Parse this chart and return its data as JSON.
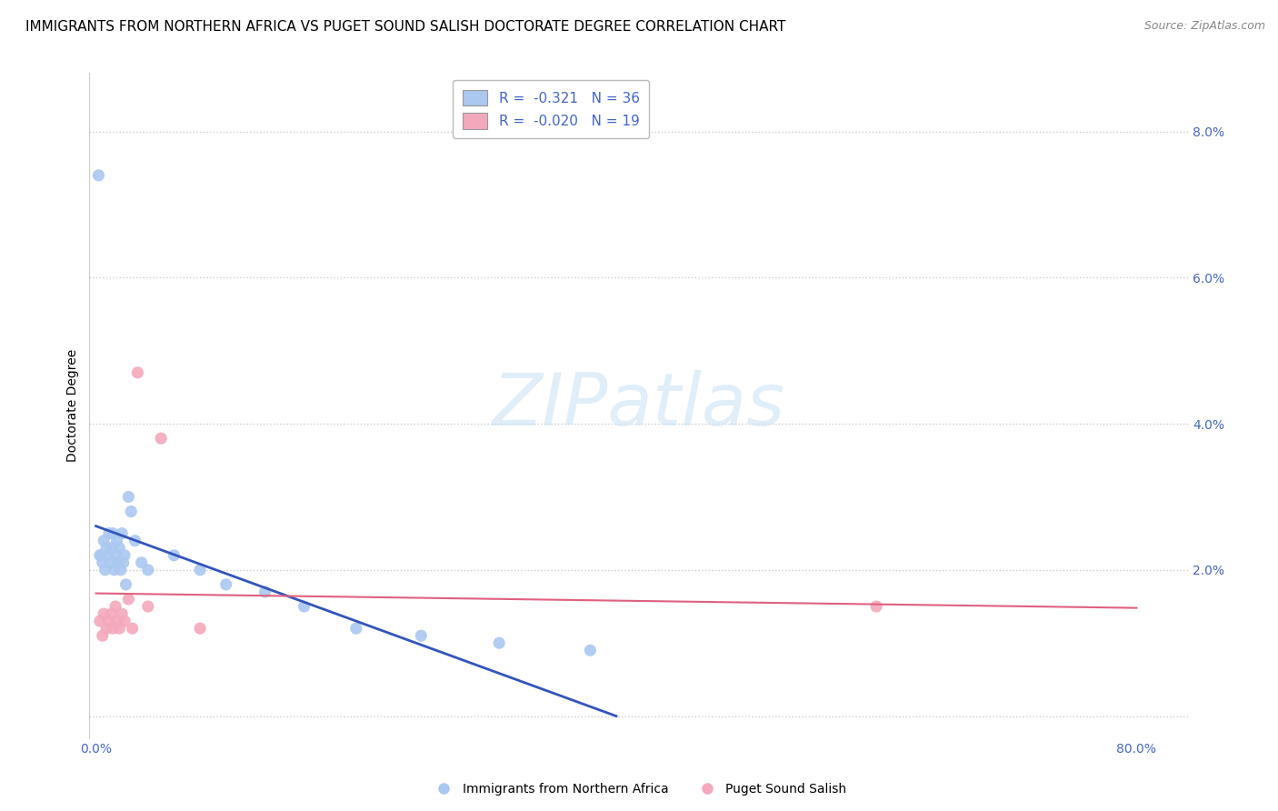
{
  "title": "IMMIGRANTS FROM NORTHERN AFRICA VS PUGET SOUND SALISH DOCTORATE DEGREE CORRELATION CHART",
  "source": "Source: ZipAtlas.com",
  "ylabel": "Doctorate Degree",
  "xlabel": "",
  "xlim_min": -0.005,
  "xlim_max": 0.84,
  "ylim_min": -0.003,
  "ylim_max": 0.088,
  "ytick_values": [
    0.0,
    0.02,
    0.04,
    0.06,
    0.08
  ],
  "ytick_labels": [
    "",
    "2.0%",
    "4.0%",
    "6.0%",
    "8.0%"
  ],
  "xtick_values": [
    0.0,
    0.1,
    0.2,
    0.3,
    0.4,
    0.5,
    0.6,
    0.7,
    0.8
  ],
  "xtick_labels": [
    "0.0%",
    "",
    "",
    "",
    "",
    "",
    "",
    "",
    "80.0%"
  ],
  "legend1_label": "R =  -0.321   N = 36",
  "legend2_label": "R =  -0.020   N = 19",
  "blue_color": "#aac8f0",
  "pink_color": "#f4a8bc",
  "blue_line_color": "#3355bb",
  "pink_line_color": "#e06080",
  "watermark_text": "ZIPatlas",
  "series1_label": "Immigrants from Northern Africa",
  "series2_label": "Puget Sound Salish",
  "blue_x": [
    0.002,
    0.003,
    0.004,
    0.005,
    0.006,
    0.007,
    0.008,
    0.009,
    0.01,
    0.011,
    0.012,
    0.013,
    0.014,
    0.015,
    0.016,
    0.017,
    0.018,
    0.019,
    0.02,
    0.021,
    0.022,
    0.023,
    0.025,
    0.027,
    0.03,
    0.035,
    0.04,
    0.06,
    0.08,
    0.1,
    0.13,
    0.16,
    0.2,
    0.25,
    0.31,
    0.38
  ],
  "blue_y": [
    0.074,
    0.022,
    0.022,
    0.021,
    0.024,
    0.02,
    0.023,
    0.022,
    0.025,
    0.021,
    0.023,
    0.025,
    0.02,
    0.022,
    0.024,
    0.021,
    0.023,
    0.02,
    0.025,
    0.021,
    0.022,
    0.018,
    0.03,
    0.028,
    0.024,
    0.021,
    0.02,
    0.022,
    0.02,
    0.018,
    0.017,
    0.015,
    0.012,
    0.011,
    0.01,
    0.009
  ],
  "pink_x": [
    0.003,
    0.005,
    0.006,
    0.008,
    0.01,
    0.012,
    0.013,
    0.015,
    0.016,
    0.018,
    0.02,
    0.022,
    0.025,
    0.028,
    0.032,
    0.04,
    0.05,
    0.08,
    0.6
  ],
  "pink_y": [
    0.013,
    0.011,
    0.014,
    0.012,
    0.013,
    0.014,
    0.012,
    0.015,
    0.013,
    0.012,
    0.014,
    0.013,
    0.016,
    0.012,
    0.047,
    0.015,
    0.038,
    0.012,
    0.015
  ],
  "blue_trend_x0": 0.0,
  "blue_trend_y0": 0.026,
  "blue_trend_x1": 0.4,
  "blue_trend_y1": 0.0,
  "pink_trend_x0": 0.0,
  "pink_trend_y0": 0.0168,
  "pink_trend_x1": 0.8,
  "pink_trend_y1": 0.0148,
  "background_color": "#ffffff",
  "grid_color": "#cccccc",
  "title_fontsize": 11,
  "axis_label_fontsize": 10,
  "tick_fontsize": 10,
  "legend_fontsize": 11,
  "source_fontsize": 9
}
